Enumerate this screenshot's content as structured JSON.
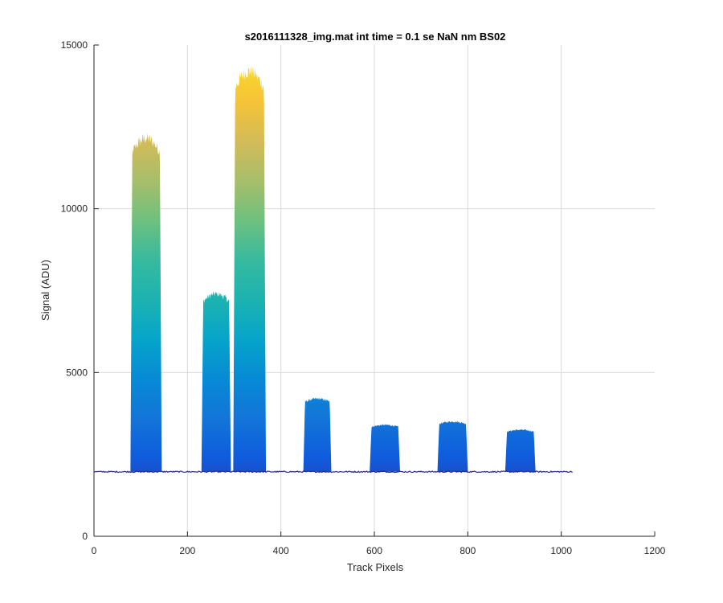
{
  "chart_data": {
    "type": "line",
    "title": "s2016111328_img.mat int time = 0.1 se  NaN nm BS02",
    "xlabel": "Track Pixels",
    "ylabel": "Signal (ADU)",
    "xlim": [
      0,
      1200
    ],
    "ylim": [
      0,
      15000
    ],
    "xticks": [
      0,
      200,
      400,
      600,
      800,
      1000,
      1200
    ],
    "yticks": [
      0,
      5000,
      10000,
      15000
    ],
    "grid": true,
    "colormap": "parula",
    "baseline": 1970,
    "x_extent": [
      0,
      1024
    ],
    "peaks": [
      {
        "start": 78,
        "end": 145,
        "max": 12150
      },
      {
        "start": 230,
        "end": 293,
        "max": 7400
      },
      {
        "start": 298,
        "end": 368,
        "max": 14200
      },
      {
        "start": 448,
        "end": 508,
        "max": 4200
      },
      {
        "start": 590,
        "end": 655,
        "max": 3400
      },
      {
        "start": 735,
        "end": 800,
        "max": 3500
      },
      {
        "start": 880,
        "end": 945,
        "max": 3250
      }
    ]
  },
  "colors": {
    "background": "#ffffff",
    "axes": "#262626",
    "grid": "#d9d9d9",
    "baseline": "#2c2a8a"
  }
}
